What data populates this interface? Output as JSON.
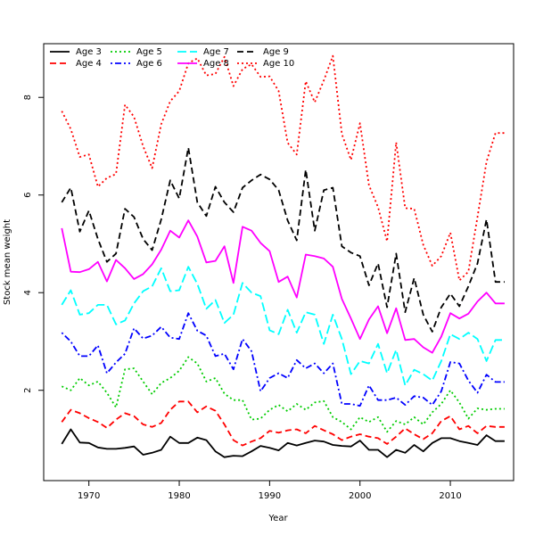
{
  "chart_data": {
    "type": "line",
    "title": "",
    "xlabel": "Year",
    "ylabel": "Stock mean weight",
    "xlim": [
      1965,
      2017
    ],
    "ylim": [
      0.15,
      9.1
    ],
    "xticks": [
      1970,
      1980,
      1990,
      2000,
      2010
    ],
    "yticks": [
      2,
      4,
      6,
      8
    ],
    "grid": false,
    "legend_position": "top-left",
    "x": [
      1967,
      1968,
      1969,
      1970,
      1971,
      1972,
      1973,
      1974,
      1975,
      1976,
      1977,
      1978,
      1979,
      1980,
      1981,
      1982,
      1983,
      1984,
      1985,
      1986,
      1987,
      1988,
      1989,
      1990,
      1991,
      1992,
      1993,
      1994,
      1995,
      1996,
      1997,
      1998,
      1999,
      2000,
      2001,
      2002,
      2003,
      2004,
      2005,
      2006,
      2007,
      2008,
      2009,
      2010,
      2011,
      2012,
      2013,
      2014,
      2015,
      2016
    ],
    "series": [
      {
        "name": "Age 3",
        "color": "#000000",
        "dash": "solid",
        "values": [
          0.9,
          1.2,
          0.93,
          0.92,
          0.83,
          0.8,
          0.8,
          0.82,
          0.85,
          0.68,
          0.72,
          0.78,
          1.05,
          0.92,
          0.92,
          1.03,
          0.98,
          0.75,
          0.63,
          0.66,
          0.65,
          0.75,
          0.86,
          0.82,
          0.77,
          0.92,
          0.87,
          0.92,
          0.97,
          0.95,
          0.88,
          0.86,
          0.85,
          0.97,
          0.78,
          0.78,
          0.63,
          0.78,
          0.72,
          0.88,
          0.75,
          0.92,
          1.02,
          1.02,
          0.96,
          0.92,
          0.88,
          1.08,
          0.96,
          0.96
        ]
      },
      {
        "name": "Age 4",
        "color": "#ff0000",
        "dash": "dashed",
        "values": [
          1.35,
          1.6,
          1.53,
          1.43,
          1.35,
          1.23,
          1.4,
          1.53,
          1.47,
          1.3,
          1.25,
          1.33,
          1.6,
          1.77,
          1.77,
          1.55,
          1.67,
          1.58,
          1.3,
          0.98,
          0.87,
          0.95,
          1.02,
          1.17,
          1.13,
          1.18,
          1.2,
          1.12,
          1.27,
          1.18,
          1.1,
          0.98,
          1.05,
          1.1,
          1.05,
          1.02,
          0.9,
          1.05,
          1.22,
          1.1,
          1.0,
          1.12,
          1.37,
          1.47,
          1.2,
          1.27,
          1.12,
          1.27,
          1.25,
          1.25
        ]
      },
      {
        "name": "Age 5",
        "color": "#00cc00",
        "dash": "dotted",
        "values": [
          2.08,
          2.0,
          2.25,
          2.1,
          2.18,
          1.95,
          1.65,
          2.43,
          2.45,
          2.18,
          1.92,
          2.15,
          2.25,
          2.4,
          2.68,
          2.55,
          2.18,
          2.25,
          1.93,
          1.8,
          1.8,
          1.4,
          1.42,
          1.6,
          1.7,
          1.57,
          1.72,
          1.6,
          1.75,
          1.78,
          1.45,
          1.35,
          1.2,
          1.45,
          1.35,
          1.45,
          1.15,
          1.37,
          1.3,
          1.45,
          1.3,
          1.55,
          1.72,
          2.0,
          1.75,
          1.42,
          1.63,
          1.6,
          1.62,
          1.62
        ]
      },
      {
        "name": "Age 6",
        "color": "#0000ff",
        "dash": "dashdot",
        "values": [
          3.18,
          3.0,
          2.7,
          2.7,
          2.92,
          2.35,
          2.57,
          2.75,
          3.27,
          3.06,
          3.12,
          3.3,
          3.08,
          3.05,
          3.58,
          3.22,
          3.12,
          2.7,
          2.75,
          2.43,
          3.05,
          2.8,
          1.98,
          2.25,
          2.35,
          2.25,
          2.62,
          2.45,
          2.55,
          2.35,
          2.55,
          1.72,
          1.72,
          1.68,
          2.1,
          1.8,
          1.8,
          1.85,
          1.7,
          1.88,
          1.85,
          1.7,
          1.98,
          2.58,
          2.55,
          2.2,
          1.95,
          2.32,
          2.17,
          2.17
        ]
      },
      {
        "name": "Age 7",
        "color": "#00ffff",
        "dash": "longdash",
        "values": [
          3.75,
          4.05,
          3.55,
          3.58,
          3.75,
          3.75,
          3.35,
          3.43,
          3.78,
          4.03,
          4.13,
          4.5,
          4.03,
          4.05,
          4.53,
          4.18,
          3.67,
          3.85,
          3.38,
          3.55,
          4.2,
          4.0,
          3.93,
          3.23,
          3.15,
          3.65,
          3.18,
          3.6,
          3.55,
          2.95,
          3.55,
          3.05,
          2.33,
          2.6,
          2.55,
          2.95,
          2.35,
          2.83,
          2.1,
          2.42,
          2.33,
          2.2,
          2.6,
          3.15,
          3.05,
          3.18,
          3.05,
          2.6,
          3.03,
          3.03
        ]
      },
      {
        "name": "Age 8",
        "color": "#ff00ff",
        "dash": "solid",
        "values": [
          5.32,
          4.43,
          4.42,
          4.48,
          4.63,
          4.23,
          4.67,
          4.5,
          4.28,
          4.38,
          4.58,
          4.88,
          5.27,
          5.13,
          5.48,
          5.15,
          4.62,
          4.65,
          4.95,
          4.2,
          5.35,
          5.27,
          5.02,
          4.85,
          4.22,
          4.33,
          3.9,
          4.78,
          4.75,
          4.7,
          4.53,
          3.87,
          3.47,
          3.05,
          3.45,
          3.72,
          3.17,
          3.68,
          3.03,
          3.05,
          2.88,
          2.77,
          3.1,
          3.58,
          3.47,
          3.57,
          3.82,
          4.0,
          3.78,
          3.78
        ]
      },
      {
        "name": "Age 9",
        "color": "#000000",
        "dash": "dashed",
        "values": [
          5.85,
          6.15,
          5.25,
          5.68,
          5.1,
          4.63,
          4.8,
          5.72,
          5.55,
          5.1,
          4.87,
          5.5,
          6.3,
          5.93,
          6.97,
          5.85,
          5.57,
          6.17,
          5.85,
          5.65,
          6.15,
          6.3,
          6.42,
          6.32,
          6.1,
          5.48,
          5.07,
          6.52,
          5.27,
          6.1,
          6.15,
          4.95,
          4.82,
          4.75,
          4.15,
          4.6,
          3.7,
          4.8,
          3.6,
          4.3,
          3.55,
          3.2,
          3.7,
          3.98,
          3.72,
          4.13,
          4.6,
          5.5,
          4.22,
          4.22
        ]
      },
      {
        "name": "Age 10",
        "color": "#ff0000",
        "dash": "dotted",
        "values": [
          7.72,
          7.35,
          6.78,
          6.83,
          6.17,
          6.35,
          6.43,
          7.85,
          7.6,
          7.0,
          6.55,
          7.45,
          7.92,
          8.13,
          8.7,
          8.8,
          8.45,
          8.48,
          8.83,
          8.23,
          8.58,
          8.68,
          8.42,
          8.43,
          8.13,
          7.07,
          6.83,
          8.33,
          7.9,
          8.35,
          8.85,
          7.25,
          6.72,
          7.47,
          6.2,
          5.75,
          5.05,
          7.08,
          5.73,
          5.72,
          4.98,
          4.55,
          4.75,
          5.23,
          4.25,
          4.43,
          5.55,
          6.68,
          7.27,
          7.27
        ]
      }
    ]
  }
}
